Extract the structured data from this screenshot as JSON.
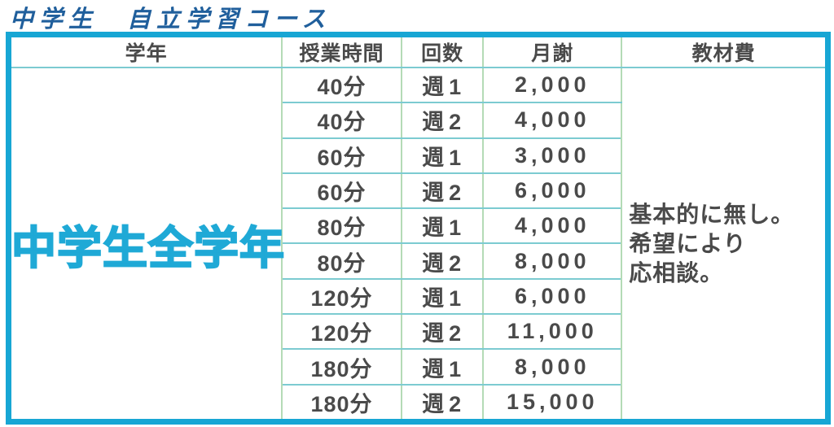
{
  "title": "中学生　自立学習コース",
  "colors": {
    "title_blue": "#205f9c",
    "accent_cyan": "#17a6d4",
    "grade_text_cyan": "#1fa9d6",
    "body_text_gray": "#4a4a4a",
    "grid_vertical_green": "#b4dbb6",
    "grid_horizontal_teal": "#7ccbd1"
  },
  "table": {
    "headers": {
      "grade": "学年",
      "time": "授業時間",
      "frequency": "回数",
      "fee": "月謝",
      "materials": "教材費"
    },
    "grade_cell": "中学生全学年",
    "materials_note": {
      "line1": "基本的に無し。",
      "line2": "希望により",
      "line3": "応相談。"
    },
    "rows": [
      {
        "time": "40分",
        "freq": "週1",
        "fee": "2,000"
      },
      {
        "time": "40分",
        "freq": "週2",
        "fee": "4,000"
      },
      {
        "time": "60分",
        "freq": "週1",
        "fee": "3,000"
      },
      {
        "time": "60分",
        "freq": "週2",
        "fee": "6,000"
      },
      {
        "time": "80分",
        "freq": "週1",
        "fee": "4,000"
      },
      {
        "time": "80分",
        "freq": "週2",
        "fee": "8,000"
      },
      {
        "time": "120分",
        "freq": "週1",
        "fee": "6,000"
      },
      {
        "time": "120分",
        "freq": "週2",
        "fee": "11,000"
      },
      {
        "time": "180分",
        "freq": "週1",
        "fee": "8,000"
      },
      {
        "time": "180分",
        "freq": "週2",
        "fee": "15,000"
      }
    ]
  }
}
